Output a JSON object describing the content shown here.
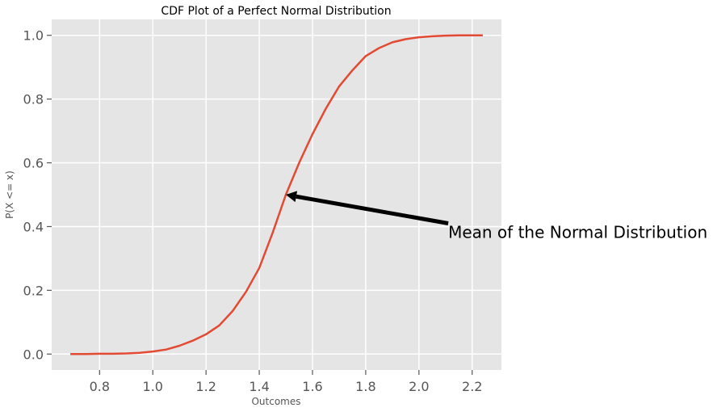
{
  "chart_data": {
    "type": "line",
    "title": "CDF Plot of a Perfect Normal Distribution",
    "xlabel": "Outcomes",
    "ylabel": "P(X <= x)",
    "xlim": [
      0.62,
      2.31
    ],
    "ylim": [
      -0.05,
      1.05
    ],
    "xticks": [
      0.8,
      1.0,
      1.2,
      1.4,
      1.6,
      1.8,
      2.0,
      2.2
    ],
    "xtick_labels": [
      "0.8",
      "1.0",
      "1.2",
      "1.4",
      "1.6",
      "1.8",
      "2.0",
      "2.2"
    ],
    "yticks": [
      0.0,
      0.2,
      0.4,
      0.6,
      0.8,
      1.0
    ],
    "ytick_labels": [
      "0.0",
      "0.2",
      "0.4",
      "0.6",
      "0.8",
      "1.0"
    ],
    "grid": true,
    "background": "#e5e5e5",
    "grid_color": "#ffffff",
    "series": [
      {
        "color": "#e24a33",
        "x": [
          0.69,
          0.75,
          0.8,
          0.85,
          0.9,
          0.95,
          1.0,
          1.05,
          1.1,
          1.15,
          1.2,
          1.25,
          1.3,
          1.35,
          1.4,
          1.45,
          1.5,
          1.55,
          1.6,
          1.65,
          1.7,
          1.75,
          1.8,
          1.85,
          1.9,
          1.95,
          2.0,
          2.05,
          2.1,
          2.15,
          2.2,
          2.24
        ],
        "y": [
          0.0,
          0.0,
          0.001,
          0.001,
          0.002,
          0.004,
          0.008,
          0.014,
          0.026,
          0.042,
          0.062,
          0.09,
          0.135,
          0.195,
          0.27,
          0.38,
          0.5,
          0.6,
          0.69,
          0.77,
          0.84,
          0.89,
          0.935,
          0.96,
          0.978,
          0.988,
          0.994,
          0.997,
          0.999,
          1.0,
          1.0,
          1.0
        ]
      }
    ],
    "annotation": {
      "text": "Mean of the Normal Distribution",
      "point": [
        1.5,
        0.5
      ],
      "text_at": [
        2.11,
        0.41
      ]
    }
  }
}
